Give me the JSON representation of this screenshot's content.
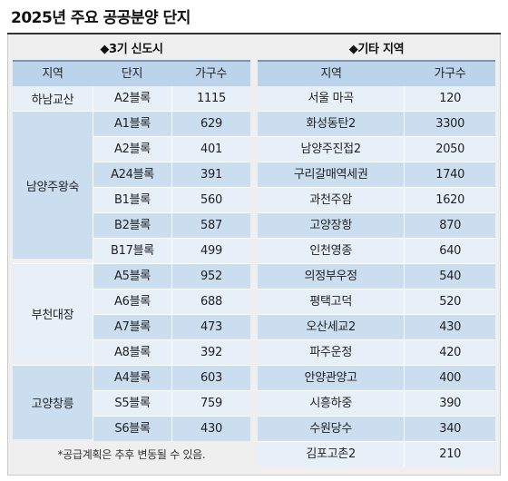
{
  "title": "2025년 주요 공공분양 단지",
  "left_panel": {
    "title": "◆3기 신도시",
    "headers": [
      "지역",
      "단지",
      "가구수"
    ],
    "groups": [
      {
        "region": "하남교산",
        "rows": [
          {
            "complex": "A2블록",
            "households": "1115"
          }
        ]
      },
      {
        "region": "남양주왕숙",
        "rows": [
          {
            "complex": "A1블록",
            "households": "629"
          },
          {
            "complex": "A2블록",
            "households": "401"
          },
          {
            "complex": "A24블록",
            "households": "391"
          },
          {
            "complex": "B1블록",
            "households": "560"
          },
          {
            "complex": "B2블록",
            "households": "587"
          },
          {
            "complex": "B17블록",
            "households": "499"
          }
        ]
      },
      {
        "region": "부천대장",
        "rows": [
          {
            "complex": "A5블록",
            "households": "952"
          },
          {
            "complex": "A6블록",
            "households": "688"
          },
          {
            "complex": "A7블록",
            "households": "473"
          },
          {
            "complex": "A8블록",
            "households": "392"
          }
        ]
      },
      {
        "region": "고양창릉",
        "rows": [
          {
            "complex": "A4블록",
            "households": "603"
          },
          {
            "complex": "S5블록",
            "households": "759"
          },
          {
            "complex": "S6블록",
            "households": "430"
          }
        ]
      }
    ]
  },
  "right_panel": {
    "title": "◆기타 지역",
    "headers": [
      "지역",
      "가구수"
    ],
    "rows": [
      {
        "region": "서울 마곡",
        "households": "120"
      },
      {
        "region": "화성동탄2",
        "households": "3300"
      },
      {
        "region": "남양주진접2",
        "households": "2050"
      },
      {
        "region": "구리갈매역세권",
        "households": "1740"
      },
      {
        "region": "과천주암",
        "households": "1620"
      },
      {
        "region": "고양장항",
        "households": "870"
      },
      {
        "region": "인천영종",
        "households": "640"
      },
      {
        "region": "의정부우정",
        "households": "540"
      },
      {
        "region": "평택고덕",
        "households": "520"
      },
      {
        "region": "오산세교2",
        "households": "430"
      },
      {
        "region": "파주운정",
        "households": "420"
      },
      {
        "region": "안양관양고",
        "households": "400"
      },
      {
        "region": "시흥하중",
        "households": "390"
      },
      {
        "region": "수원당수",
        "households": "340"
      },
      {
        "region": "김포고촌2",
        "households": "210"
      }
    ]
  },
  "footnote": "*공급계획은 추후 변동될 수 있음."
}
